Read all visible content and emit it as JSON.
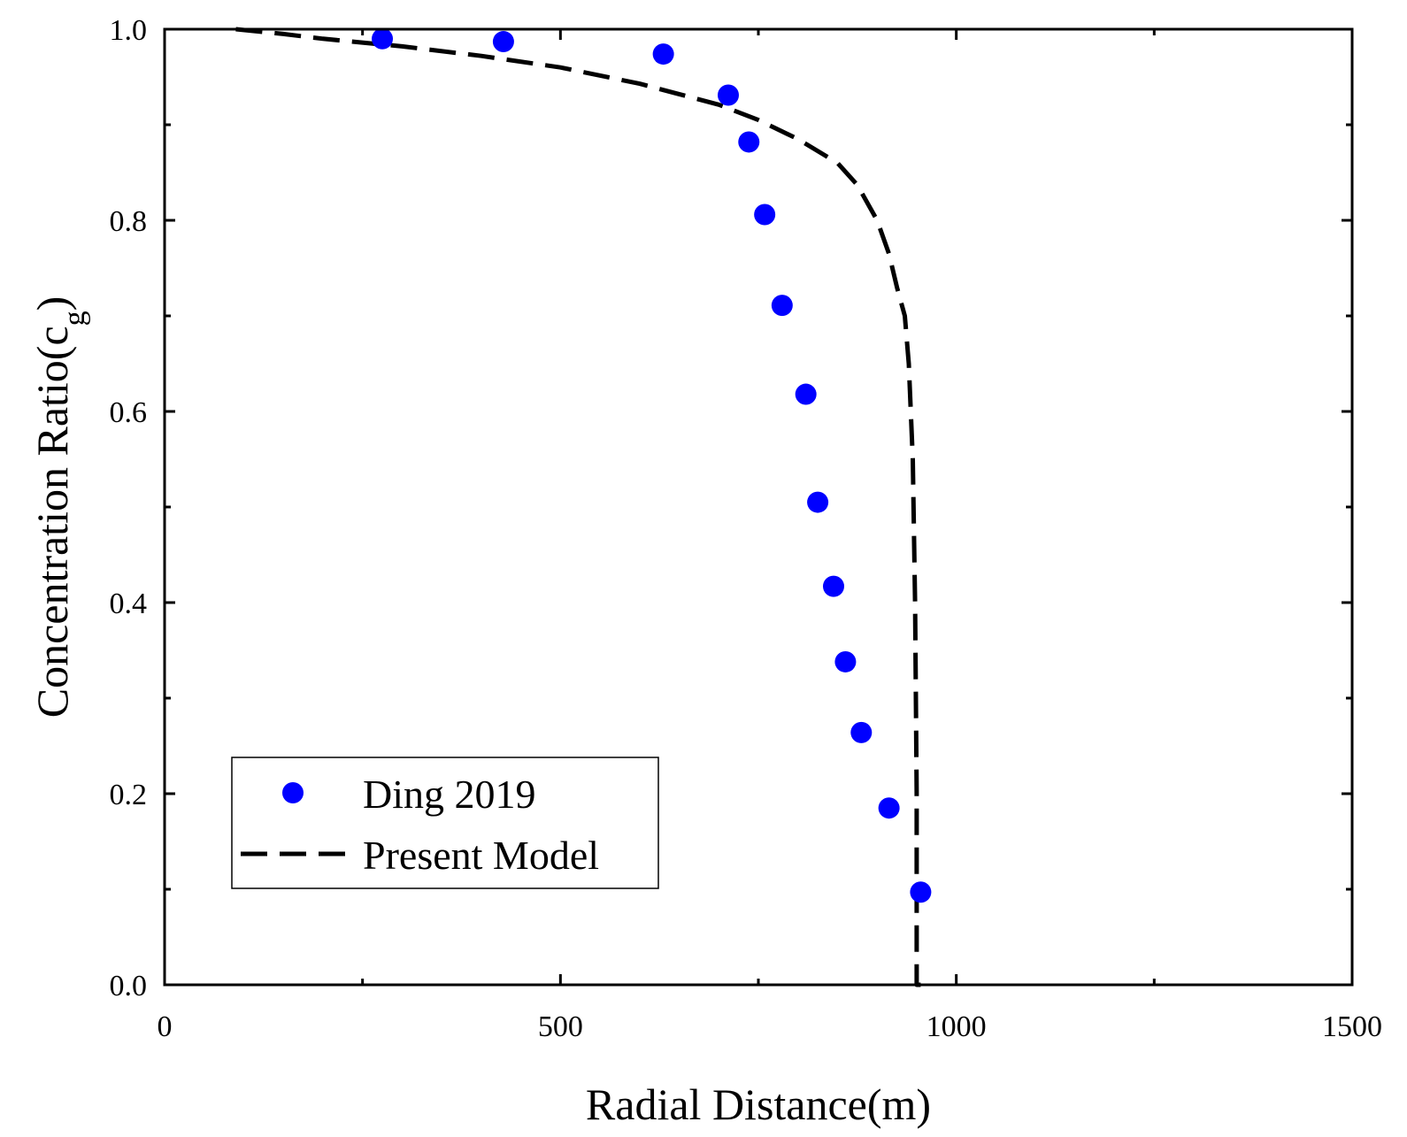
{
  "chart_data": {
    "type": "scatter",
    "title": "",
    "xlabel": "Radial Distance(m)",
    "ylabel_main": "Concentration Ratio(c",
    "ylabel_sub": "g",
    "ylabel_close": ")",
    "xlim": [
      0,
      1500
    ],
    "ylim": [
      0.0,
      1.0
    ],
    "x_ticks": [
      0,
      500,
      1000,
      1500
    ],
    "x_tick_labels": [
      "0",
      "500",
      "1000",
      "1500"
    ],
    "y_ticks": [
      0.0,
      0.2,
      0.4,
      0.6,
      0.8,
      1.0
    ],
    "y_tick_labels": [
      "0.0",
      "0.2",
      "0.4",
      "0.6",
      "0.8",
      "1.0"
    ],
    "grid": false,
    "legend_position": "bottom-left",
    "series": [
      {
        "name": "Ding 2019",
        "kind": "scatter",
        "color": "#0000ff",
        "x": [
          275,
          428,
          630,
          712,
          738,
          758,
          780,
          810,
          825,
          845,
          860,
          880,
          915,
          955
        ],
        "y": [
          0.99,
          0.987,
          0.974,
          0.931,
          0.882,
          0.806,
          0.711,
          0.618,
          0.505,
          0.417,
          0.338,
          0.264,
          0.185,
          0.097
        ]
      },
      {
        "name": "Present Model",
        "kind": "line",
        "style": "dashed",
        "color": "#000000",
        "x": [
          90,
          150,
          200,
          300,
          400,
          500,
          600,
          700,
          750,
          800,
          850,
          875,
          900,
          915,
          925,
          935,
          940,
          945,
          948,
          950,
          950,
          955
        ],
        "y": [
          1.0,
          0.995,
          0.99,
          0.982,
          0.972,
          0.96,
          0.943,
          0.921,
          0.905,
          0.885,
          0.86,
          0.837,
          0.8,
          0.765,
          0.73,
          0.7,
          0.65,
          0.55,
          0.4,
          0.2,
          0.0,
          0.0
        ]
      }
    ]
  }
}
